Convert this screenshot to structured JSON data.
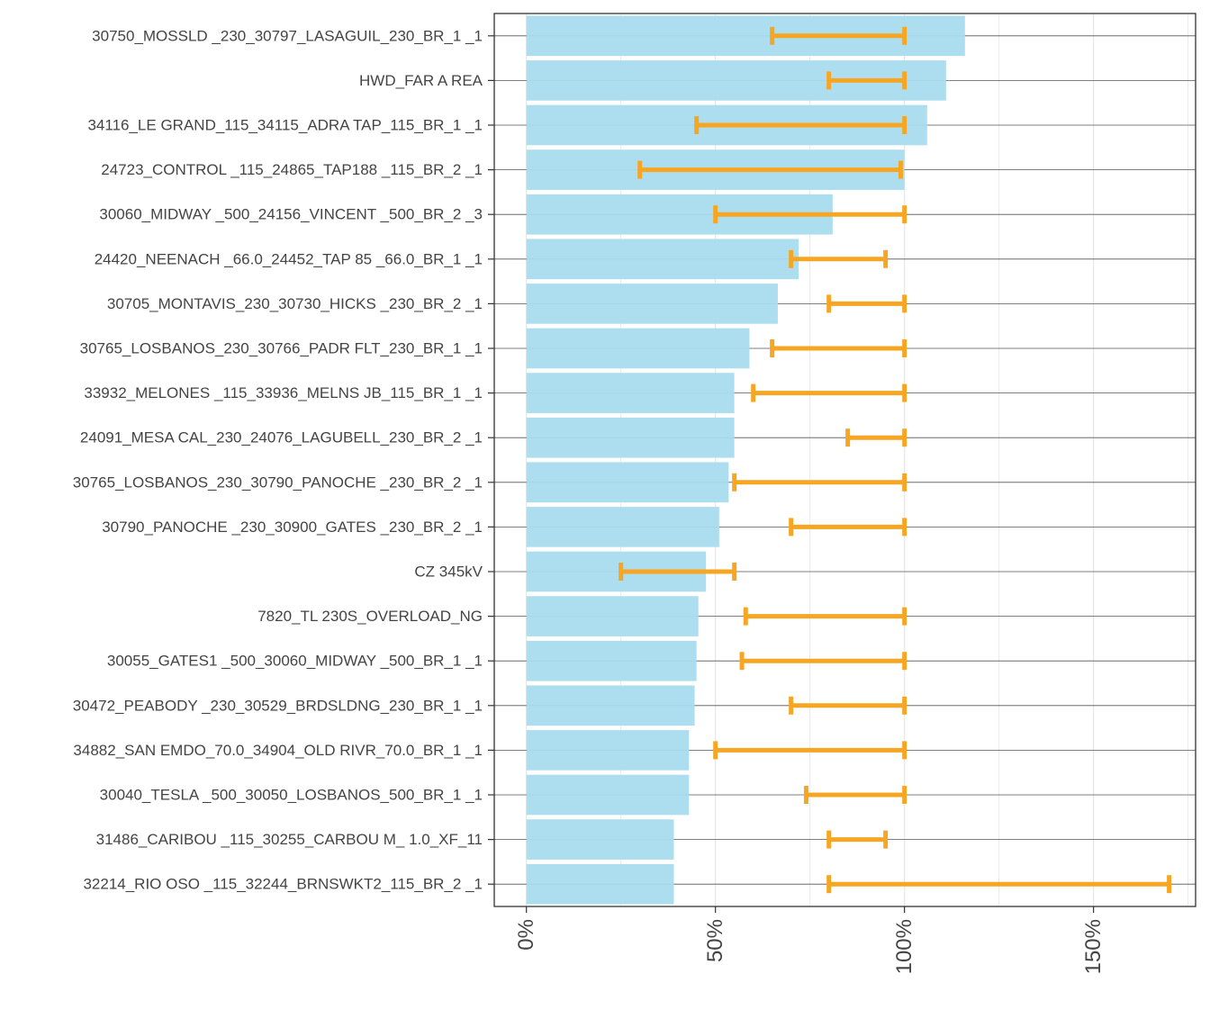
{
  "chart_data": {
    "type": "bar",
    "orientation": "horizontal",
    "title": "",
    "xlabel": "",
    "ylabel": "",
    "xlim": [
      -8.5,
      177
    ],
    "x_ticks": [
      0,
      50,
      100,
      150
    ],
    "x_tick_labels": [
      "0%",
      "50%",
      "100%",
      "150%"
    ],
    "grid": true,
    "legend": "none",
    "colors": {
      "bar": "#a8dcef",
      "range": "#f6a623",
      "grid": "#e6e6e6",
      "line": "#555555",
      "frame": "#333333"
    },
    "categories": [
      "30750_MOSSLD  _230_30797_LASAGUIL_230_BR_1 _1",
      "HWD_FAR A REA",
      "34116_LE GRAND_115_34115_ADRA TAP_115_BR_1 _1",
      "24723_CONTROL _115_24865_TAP188  _115_BR_2 _1",
      "30060_MIDWAY  _500_24156_VINCENT _500_BR_2 _3",
      "24420_NEENACH _66.0_24452_TAP 85  _66.0_BR_1 _1",
      "30705_MONTAVIS_230_30730_HICKS   _230_BR_2 _1",
      "30765_LOSBANOS_230_30766_PADR FLT_230_BR_1 _1",
      "33932_MELONES _115_33936_MELNS JB_115_BR_1 _1",
      "24091_MESA CAL_230_24076_LAGUBELL_230_BR_2 _1",
      "30765_LOSBANOS_230_30790_PANOCHE _230_BR_2 _1",
      "30790_PANOCHE _230_30900_GATES   _230_BR_2 _1",
      "CZ 345kV",
      "7820_TL 230S_OVERLOAD_NG",
      "30055_GATES1  _500_30060_MIDWAY  _500_BR_1 _1",
      "30472_PEABODY _230_30529_BRDSLDNG_230_BR_1 _1",
      "34882_SAN EMDO_70.0_34904_OLD RIVR_70.0_BR_1 _1",
      "30040_TESLA   _500_30050_LOSBANOS_500_BR_1 _1",
      "31486_CARIBOU _115_30255_CARBOU M_ 1.0_XF_11",
      "32214_RIO OSO _115_32244_BRNSWKT2_115_BR_2 _1"
    ],
    "values": [
      116,
      111,
      106,
      100,
      81,
      72,
      66.5,
      59,
      55,
      55,
      53.5,
      51,
      47.5,
      45.5,
      45,
      44.5,
      43,
      43,
      39,
      39
    ],
    "ranges": [
      [
        65,
        100
      ],
      [
        80,
        100
      ],
      [
        45,
        100
      ],
      [
        30,
        99
      ],
      [
        50,
        100
      ],
      [
        70,
        95
      ],
      [
        80,
        100
      ],
      [
        65,
        100
      ],
      [
        60,
        100
      ],
      [
        85,
        100
      ],
      [
        55,
        100
      ],
      [
        70,
        100
      ],
      [
        25,
        55
      ],
      [
        58,
        100
      ],
      [
        57,
        100
      ],
      [
        70,
        100
      ],
      [
        50,
        100
      ],
      [
        74,
        100
      ],
      [
        80,
        95
      ],
      [
        80,
        170
      ]
    ]
  }
}
